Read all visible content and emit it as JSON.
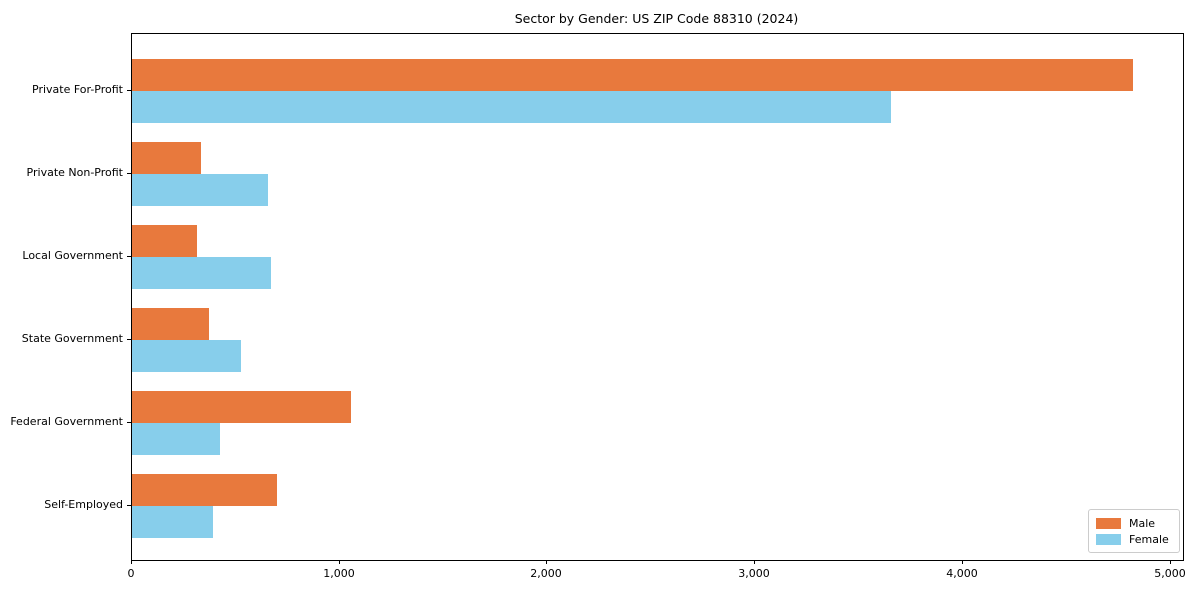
{
  "chart_data": {
    "type": "bar",
    "orientation": "horizontal",
    "title": "Sector by Gender: US ZIP Code 88310 (2024)",
    "categories": [
      "Private For-Profit",
      "Private Non-Profit",
      "Local Government",
      "State Government",
      "Federal Government",
      "Self-Employed"
    ],
    "series": [
      {
        "name": "Male",
        "color": "#e8793d",
        "values": [
          4820,
          330,
          315,
          370,
          1055,
          700
        ]
      },
      {
        "name": "Female",
        "color": "#87ceeb",
        "values": [
          3655,
          655,
          670,
          525,
          425,
          390
        ]
      }
    ],
    "xlabel": "",
    "ylabel": "",
    "xlim": [
      0,
      5060
    ],
    "xticks": [
      0,
      1000,
      2000,
      3000,
      4000,
      5000
    ],
    "xtick_labels": [
      "0",
      "1,000",
      "2,000",
      "3,000",
      "4,000",
      "5,000"
    ],
    "grid": false,
    "legend": {
      "position": "lower-right"
    }
  }
}
